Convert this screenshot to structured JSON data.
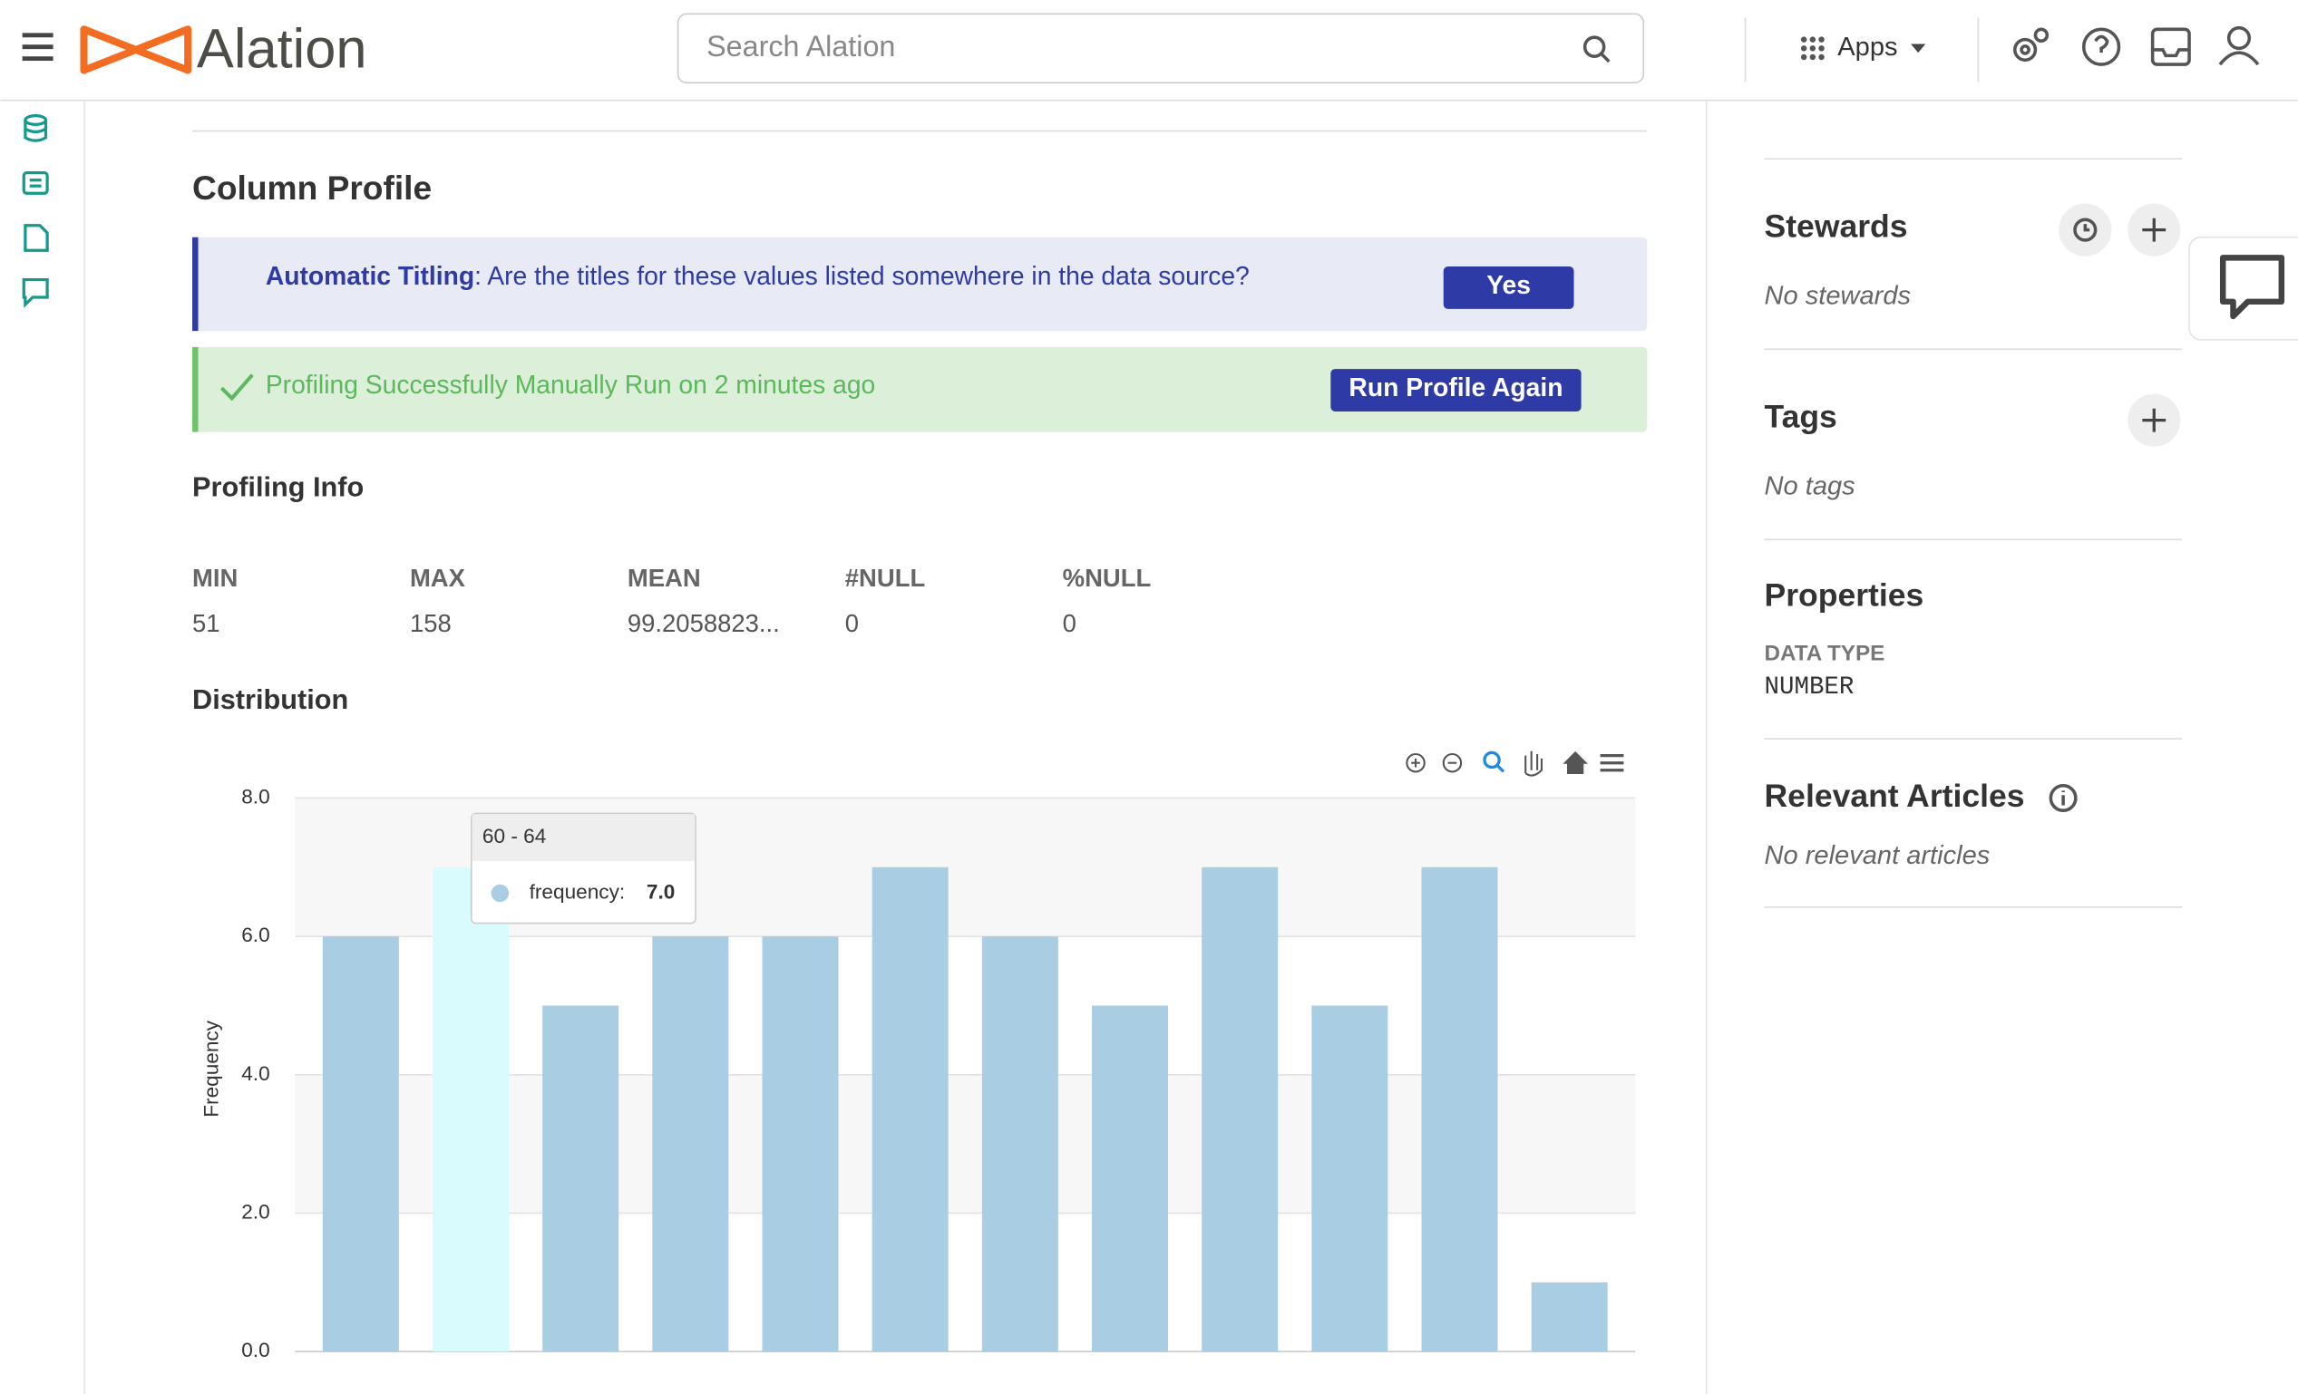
{
  "header": {
    "brand": "Alation",
    "search_placeholder": "Search Alation",
    "apps": "Apps"
  },
  "main": {
    "title": "Column Profile",
    "titling_prompt": {
      "label": "Automatic Titling",
      "question": ": Are the titles for these values listed somewhere in the data source?",
      "button": "Yes"
    },
    "status": {
      "message": "Profiling Successfully Manually Run on 2 minutes ago",
      "button": "Run Profile Again"
    },
    "profiling_info": {
      "title": "Profiling Info",
      "stats": [
        {
          "label": "MIN",
          "value": 51
        },
        {
          "label": "MAX",
          "value": 158
        },
        {
          "label": "MEAN",
          "value": "99.2058823..."
        },
        {
          "label": "#NULL",
          "value": 0
        },
        {
          "label": "%NULL",
          "value": 0
        }
      ]
    },
    "distribution_title": "Distribution"
  },
  "chart_data": {
    "type": "bar",
    "y_label": "Frequency",
    "categories": [
      null,
      null,
      null,
      null,
      null,
      null,
      null,
      null,
      null,
      null,
      null,
      null
    ],
    "values": [
      6,
      7,
      5,
      6,
      6,
      7,
      6,
      5,
      7,
      5,
      7,
      1
    ],
    "color": "#a9cde3",
    "highlight_color": "#d9fbfe",
    "highlight_index": 1,
    "ylim": [
      0,
      8
    ],
    "yticks": [
      {
        "value": 0,
        "label": "0.0"
      },
      {
        "value": 2,
        "label": "2.0"
      },
      {
        "value": 4,
        "label": "4.0"
      },
      {
        "value": 6,
        "label": "6.0"
      },
      {
        "value": 8,
        "label": "8.0"
      }
    ],
    "grid": true,
    "tooltip": {
      "category": "60 - 64",
      "series_label": "frequency:",
      "value": {
        "value": 7,
        "label": "7.0"
      }
    }
  },
  "sidebar": {
    "stewards": {
      "title": "Stewards",
      "empty": "No stewards"
    },
    "tags": {
      "title": "Tags",
      "empty": "No tags"
    },
    "properties": {
      "title": "Properties",
      "key": "DATA TYPE",
      "value": "NUMBER"
    },
    "articles": {
      "title": "Relevant Articles",
      "empty": "No relevant articles"
    }
  }
}
